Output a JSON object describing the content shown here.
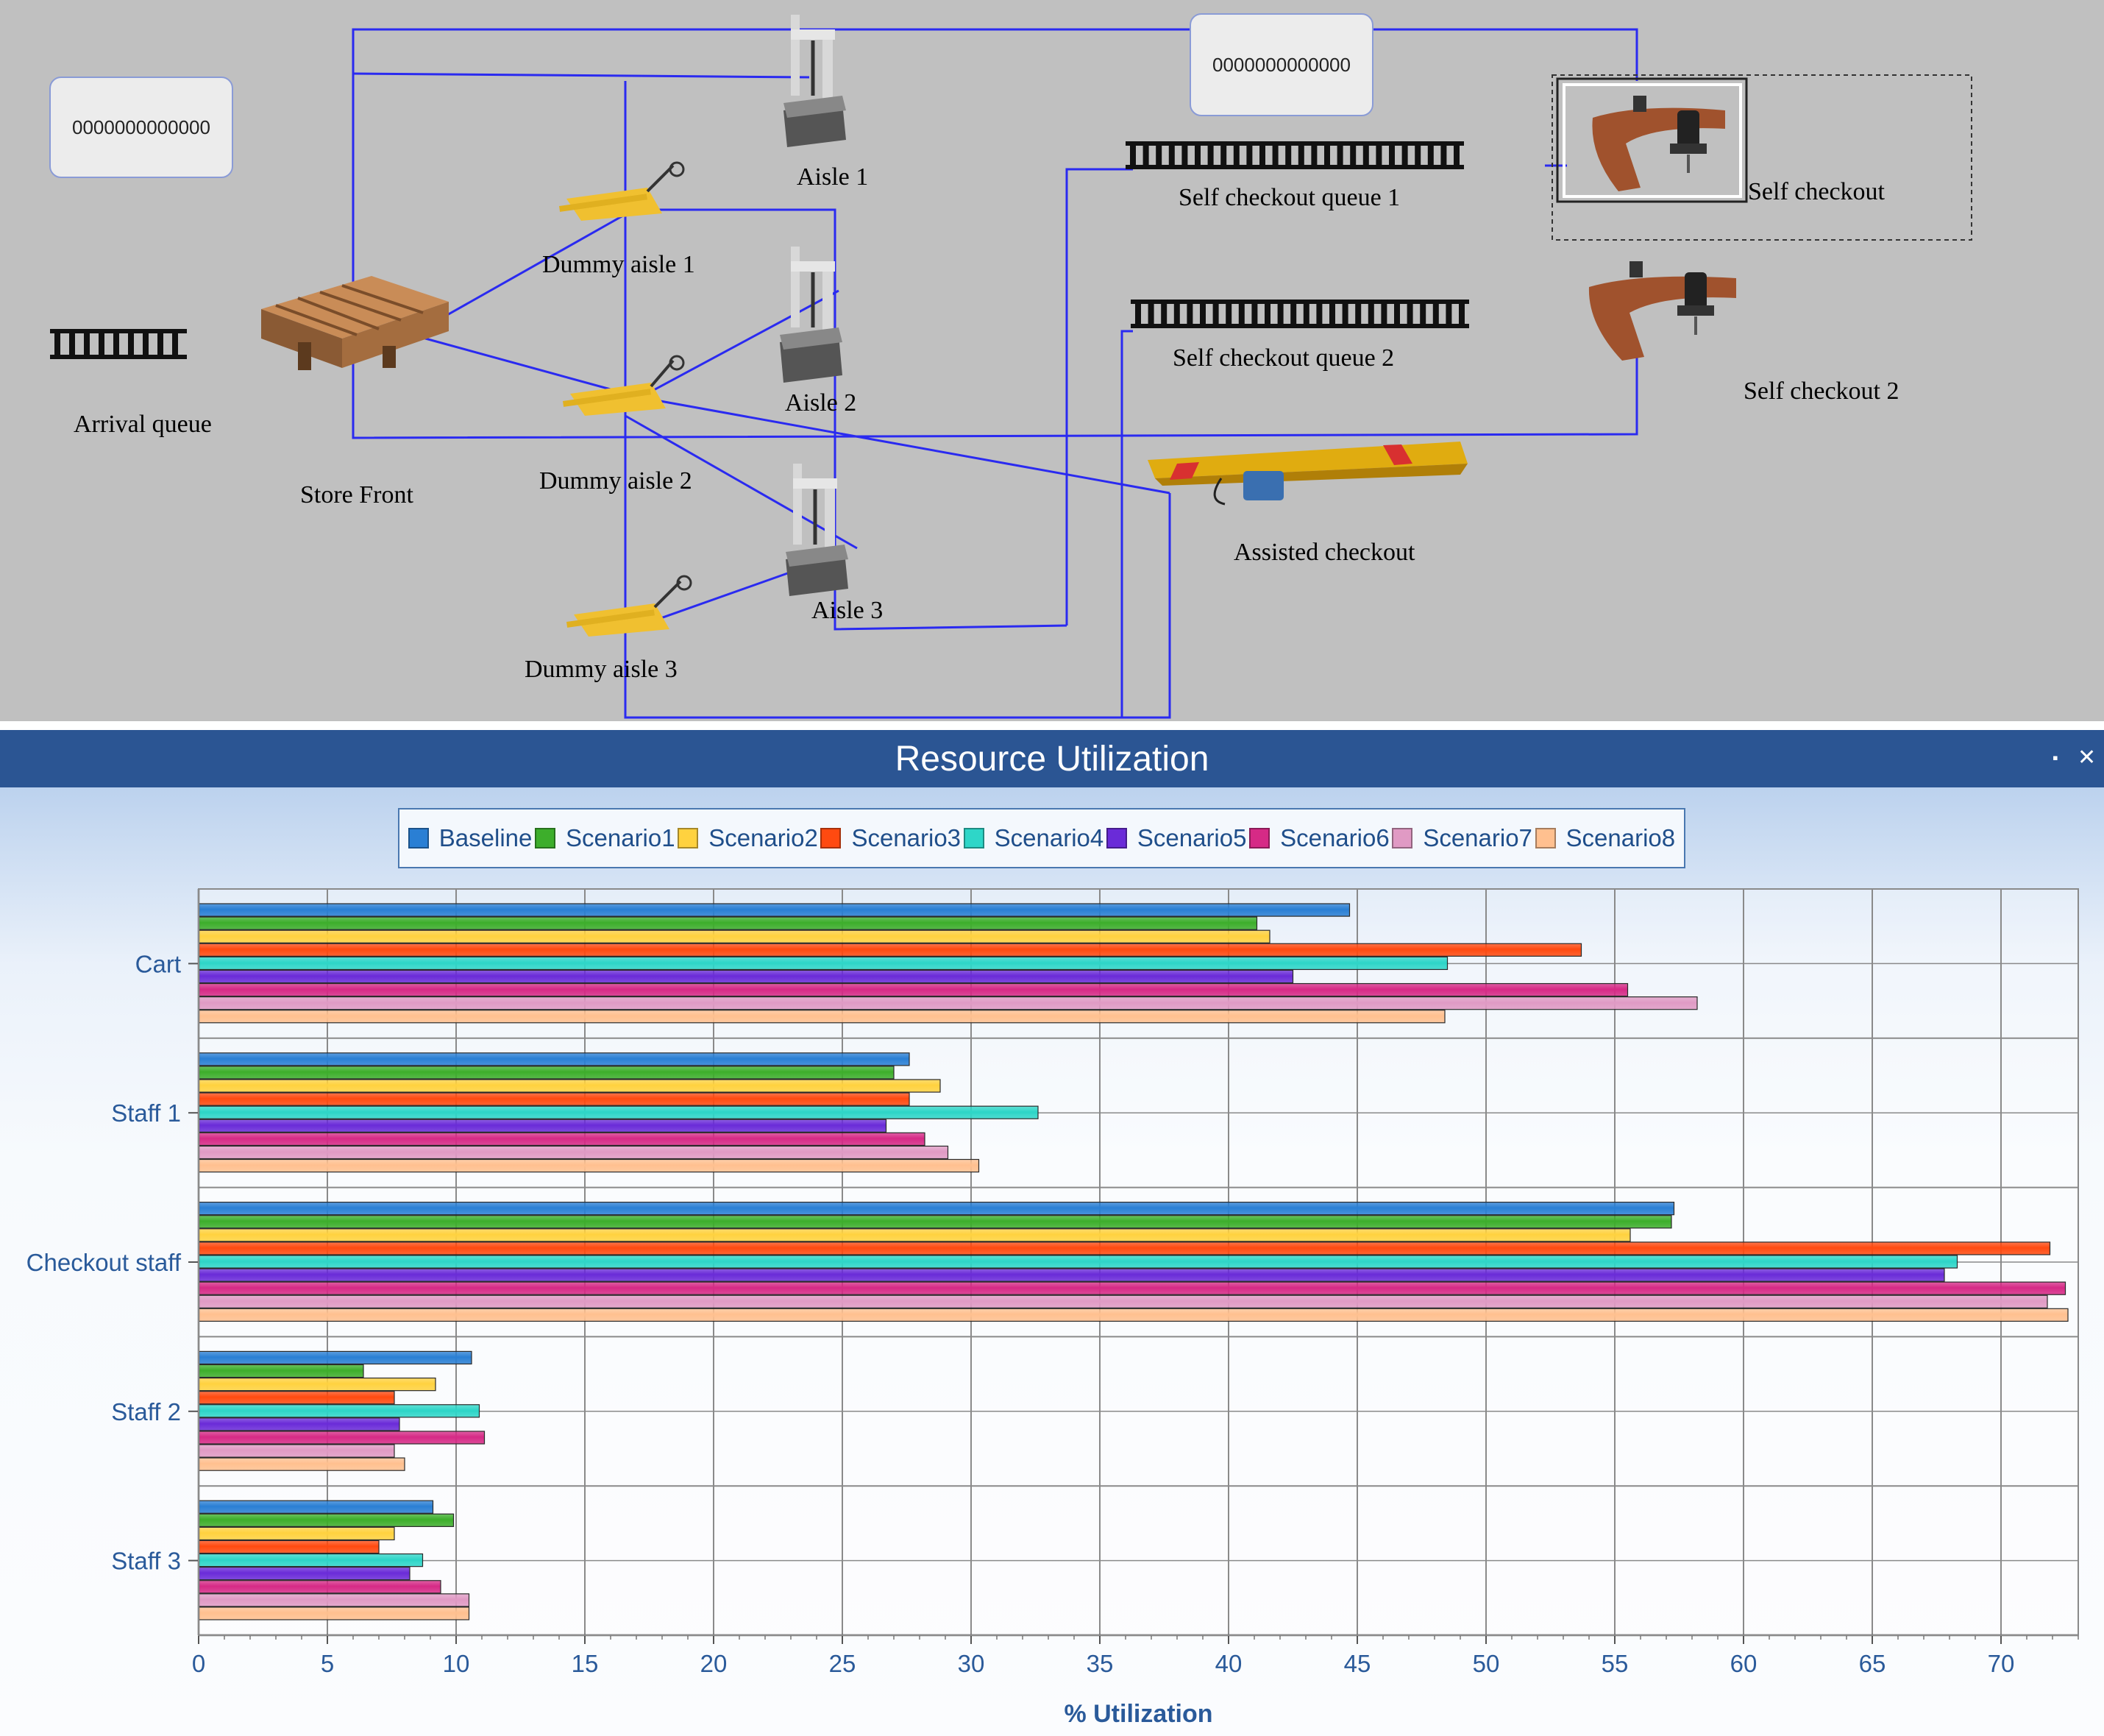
{
  "simulation": {
    "counters": [
      "0000000000000",
      "0000000000000"
    ],
    "labels": {
      "aisle_1": "Aisle 1",
      "aisle_2": "Aisle 2",
      "aisle_3": "Aisle 3",
      "dummy_aisle_1": "Dummy aisle 1",
      "dummy_aisle_2": "Dummy aisle 2",
      "dummy_aisle_3": "Dummy aisle 3",
      "arrival_queue": "Arrival queue",
      "store_front": "Store Front",
      "self_checkout_queue_1": "Self checkout queue 1",
      "self_checkout_queue_2": "Self checkout queue 2",
      "self_checkout": "Self checkout",
      "self_checkout_2": "Self checkout 2",
      "assisted_checkout": "Assisted checkout"
    },
    "icons": [
      "pallet-icon",
      "pallet-jack-icon",
      "measuring-machine-icon",
      "conveyor-icon",
      "checkout-desk-icon",
      "crane-icon"
    ],
    "colors": {
      "background": "#c0c0c0",
      "path": "#2a2af0"
    }
  },
  "panel": {
    "title": "Resource Utilization",
    "controls": {
      "restore": "▪",
      "close": "✕"
    }
  },
  "chart_data": {
    "type": "bar",
    "orientation": "horizontal",
    "categories": [
      "Cart",
      "Staff 1",
      "Checkout staff",
      "Staff 2",
      "Staff 3"
    ],
    "series": [
      {
        "name": "Baseline",
        "color": "#2a7fd4",
        "values": [
          44.7,
          27.6,
          57.3,
          10.6,
          9.1
        ]
      },
      {
        "name": "Scenario1",
        "color": "#3dae2b",
        "values": [
          41.1,
          27.0,
          57.2,
          6.4,
          9.9
        ]
      },
      {
        "name": "Scenario2",
        "color": "#ffd23f",
        "values": [
          41.6,
          28.8,
          55.6,
          9.2,
          7.6
        ]
      },
      {
        "name": "Scenario3",
        "color": "#ff4a10",
        "values": [
          53.7,
          27.6,
          71.9,
          7.6,
          7.0
        ]
      },
      {
        "name": "Scenario4",
        "color": "#2ed6c8",
        "values": [
          48.5,
          32.6,
          68.3,
          10.9,
          8.7
        ]
      },
      {
        "name": "Scenario5",
        "color": "#6a2bd8",
        "values": [
          42.5,
          26.7,
          67.8,
          7.8,
          8.2
        ]
      },
      {
        "name": "Scenario6",
        "color": "#d62a86",
        "values": [
          55.5,
          28.2,
          72.5,
          11.1,
          9.4
        ]
      },
      {
        "name": "Scenario7",
        "color": "#e09ac4",
        "values": [
          58.2,
          29.1,
          71.8,
          7.6,
          10.5
        ]
      },
      {
        "name": "Scenario8",
        "color": "#ffc08f",
        "values": [
          48.4,
          30.3,
          72.6,
          8.0,
          10.5
        ]
      }
    ],
    "xlabel": "% Utilization",
    "ylabel": "",
    "xlim": [
      0,
      73
    ],
    "xticks": [
      0,
      5,
      10,
      15,
      20,
      25,
      30,
      35,
      40,
      45,
      50,
      55,
      60,
      65,
      70
    ],
    "grid": true,
    "legend": "top-center"
  }
}
